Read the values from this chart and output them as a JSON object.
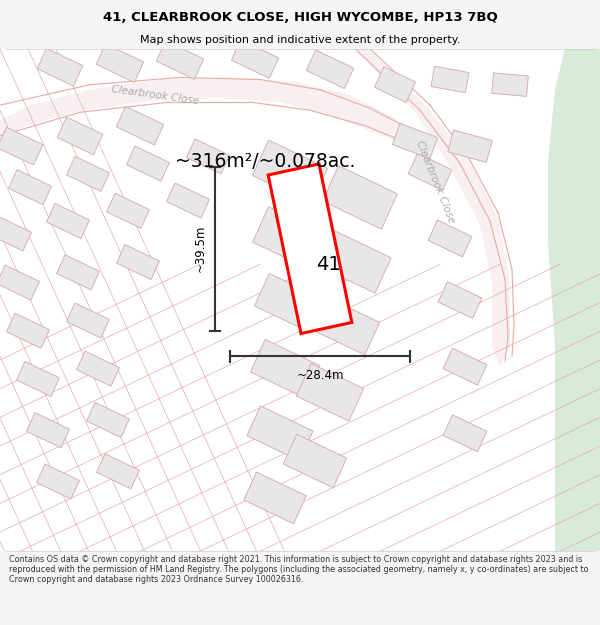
{
  "title": "41, CLEARBROOK CLOSE, HIGH WYCOMBE, HP13 7BQ",
  "subtitle": "Map shows position and indicative extent of the property.",
  "area_text": "~316m²/~0.078ac.",
  "plot_number": "41",
  "dim_width": "~28.4m",
  "dim_height": "~39.5m",
  "footer_text": "Contains OS data © Crown copyright and database right 2021. This information is subject to Crown copyright and database rights 2023 and is reproduced with the permission of HM Land Registry. The polygons (including the associated geometry, namely x, y co-ordinates) are subject to Crown copyright and database rights 2023 Ordnance Survey 100026316.",
  "bg_color": "#f5f5f5",
  "map_bg": "#ffffff",
  "plot_line_color": "#e8a8a8",
  "road_fill": "#f0e8e8",
  "road_line": "#d4b0b0",
  "building_fill": "#e8e6e6",
  "building_line": "#d0a8a8",
  "highlight_color": "#ff0000",
  "green_area": "#d8ead8",
  "road_label_color": "#aaaaaa",
  "title_color": "#000000",
  "footer_color": "#333333",
  "dim_color": "#333333"
}
